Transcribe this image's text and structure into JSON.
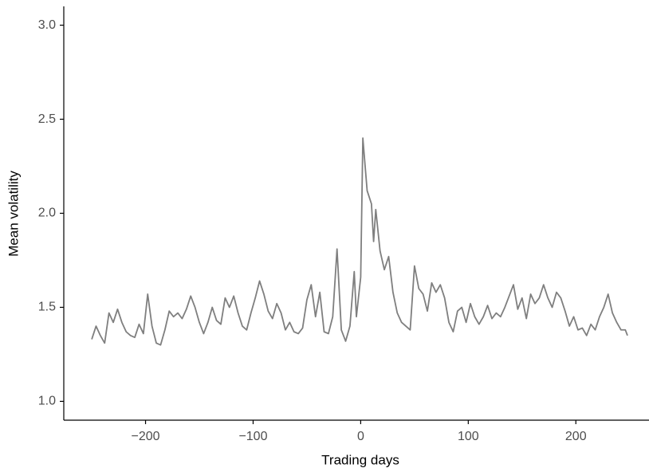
{
  "chart_data": {
    "type": "line",
    "x_label": "Trading days",
    "y_label": "Mean volatility",
    "x": [
      -250,
      -246,
      -242,
      -238,
      -234,
      -230,
      -226,
      -222,
      -218,
      -214,
      -210,
      -206,
      -202,
      -198,
      -194,
      -190,
      -186,
      -182,
      -178,
      -174,
      -170,
      -166,
      -162,
      -158,
      -154,
      -150,
      -146,
      -142,
      -138,
      -134,
      -130,
      -126,
      -122,
      -118,
      -114,
      -110,
      -106,
      -102,
      -98,
      -94,
      -90,
      -86,
      -82,
      -78,
      -74,
      -70,
      -66,
      -62,
      -58,
      -54,
      -50,
      -46,
      -42,
      -38,
      -34,
      -30,
      -26,
      -22,
      -18,
      -14,
      -10,
      -6,
      -4,
      0,
      2,
      4,
      6,
      10,
      12,
      14,
      18,
      22,
      26,
      30,
      34,
      38,
      42,
      46,
      50,
      54,
      58,
      62,
      66,
      70,
      74,
      78,
      82,
      86,
      90,
      94,
      98,
      102,
      106,
      110,
      114,
      118,
      122,
      126,
      130,
      134,
      138,
      142,
      146,
      150,
      154,
      158,
      162,
      166,
      170,
      174,
      178,
      182,
      186,
      190,
      194,
      198,
      202,
      206,
      210,
      214,
      218,
      222,
      226,
      230,
      234,
      238,
      242,
      246,
      248
    ],
    "series": [
      {
        "color": "#7f7f7f",
        "values": [
          1.33,
          1.4,
          1.35,
          1.31,
          1.47,
          1.42,
          1.49,
          1.42,
          1.37,
          1.35,
          1.34,
          1.41,
          1.36,
          1.57,
          1.4,
          1.31,
          1.3,
          1.38,
          1.48,
          1.45,
          1.47,
          1.44,
          1.49,
          1.56,
          1.5,
          1.42,
          1.36,
          1.42,
          1.5,
          1.43,
          1.41,
          1.55,
          1.5,
          1.56,
          1.47,
          1.4,
          1.38,
          1.47,
          1.55,
          1.64,
          1.57,
          1.48,
          1.44,
          1.52,
          1.47,
          1.38,
          1.42,
          1.37,
          1.36,
          1.39,
          1.54,
          1.62,
          1.45,
          1.58,
          1.37,
          1.36,
          1.45,
          1.81,
          1.38,
          1.32,
          1.4,
          1.69,
          1.45,
          1.66,
          2.4,
          2.26,
          2.12,
          2.05,
          1.85,
          2.02,
          1.8,
          1.7,
          1.77,
          1.58,
          1.47,
          1.42,
          1.4,
          1.38,
          1.72,
          1.6,
          1.57,
          1.48,
          1.63,
          1.58,
          1.62,
          1.55,
          1.42,
          1.37,
          1.48,
          1.5,
          1.42,
          1.52,
          1.45,
          1.41,
          1.45,
          1.51,
          1.44,
          1.47,
          1.45,
          1.5,
          1.56,
          1.62,
          1.49,
          1.55,
          1.44,
          1.57,
          1.52,
          1.55,
          1.62,
          1.55,
          1.5,
          1.58,
          1.55,
          1.48,
          1.4,
          1.45,
          1.38,
          1.39,
          1.35,
          1.41,
          1.38,
          1.45,
          1.5,
          1.57,
          1.47,
          1.42,
          1.38,
          1.38,
          1.35
        ]
      }
    ],
    "xlim": [
      -276,
      268
    ],
    "ylim": [
      0.9,
      3.1
    ],
    "xticks": [
      {
        "value": -200,
        "label": "−200"
      },
      {
        "value": -100,
        "label": "−100"
      },
      0,
      100,
      200
    ],
    "yticks": [
      {
        "value": 1,
        "label": "1.0"
      },
      1.5,
      {
        "value": 2,
        "label": "2.0"
      },
      2.5,
      {
        "value": 3,
        "label": "3.0"
      }
    ],
    "grid": false
  }
}
